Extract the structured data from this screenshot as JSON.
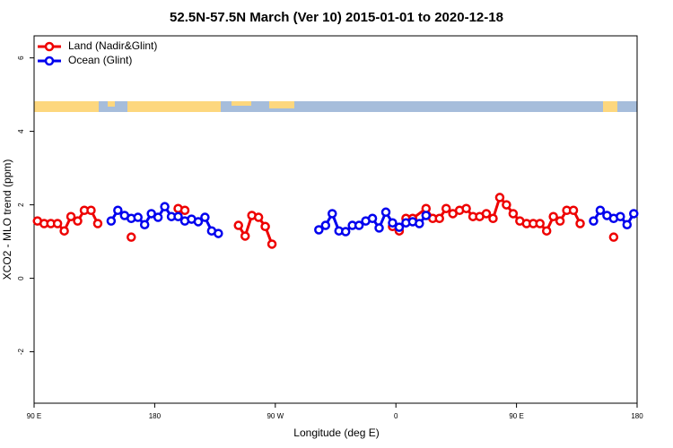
{
  "chart_data": {
    "type": "line",
    "title": "52.5N-57.5N March (Ver 10)   2015-01-01 to 2020-12-18",
    "x_label": "Longitude (deg E)",
    "y_label": "XCO2 - MLO trend (ppm)",
    "xlim": [
      90,
      540
    ],
    "xticks": [
      {
        "value": 90,
        "label": "90 E"
      },
      {
        "value": 180,
        "label": "180"
      },
      {
        "value": 270,
        "label": "90 W"
      },
      {
        "value": 360,
        "label": "0"
      },
      {
        "value": 450,
        "label": "90 E"
      },
      {
        "value": 540,
        "label": "180"
      }
    ],
    "ylim": [
      -3.4,
      6.6
    ],
    "yticks": [
      -2,
      0,
      2,
      4,
      6
    ],
    "legend": "top-left",
    "series": [
      {
        "name": "Land (Nadir&Glint)",
        "color": "#ee0000",
        "x": [
          92.5,
          97.5,
          102.5,
          107.5,
          112.5,
          117.5,
          122.5,
          127.5,
          132.5,
          137.5,
          null,
          162.5,
          null,
          197.5,
          202.5,
          null,
          242.5,
          247.5,
          252.5,
          257.5,
          262.5,
          267.5,
          null,
          357.5,
          362.5,
          367.5,
          372.5,
          382.5,
          387.5,
          392.5,
          397.5,
          402.5,
          407.5,
          412.5,
          417.5,
          422.5,
          427.5,
          432.5,
          437.5,
          442.5,
          447.5,
          452.5,
          457.5,
          462.5,
          467.5,
          472.5,
          477.5,
          482.5,
          487.5,
          492.5,
          497.5,
          null,
          522.5
        ],
        "values": [
          1.56,
          1.49,
          1.49,
          1.49,
          1.29,
          1.68,
          1.56,
          1.85,
          1.85,
          1.49,
          null,
          1.12,
          null,
          1.9,
          1.85,
          null,
          1.44,
          1.15,
          1.71,
          1.66,
          1.41,
          0.93,
          null,
          1.41,
          1.29,
          1.63,
          1.63,
          1.9,
          1.63,
          1.63,
          1.9,
          1.76,
          1.85,
          1.9,
          1.68,
          1.68,
          1.76,
          1.63,
          2.2,
          2.0,
          1.76,
          1.56,
          1.49,
          1.49,
          1.49,
          1.29,
          1.68,
          1.56,
          1.85,
          1.85,
          1.49,
          null,
          1.12
        ]
      },
      {
        "name": "Ocean (Glint)",
        "color": "#0000ee",
        "x": [
          147.5,
          152.5,
          157.5,
          162.5,
          167.5,
          172.5,
          177.5,
          182.5,
          187.5,
          192.5,
          197.5,
          202.5,
          207.5,
          212.5,
          217.5,
          222.5,
          227.5,
          null,
          302.5,
          307.5,
          312.5,
          317.5,
          322.5,
          327.5,
          332.5,
          337.5,
          342.5,
          347.5,
          352.5,
          357.5,
          362.5,
          367.5,
          372.5,
          377.5,
          382.5,
          null,
          507.5,
          512.5,
          517.5,
          522.5,
          527.5,
          532.5,
          537.5
        ],
        "values": [
          1.56,
          1.85,
          1.71,
          1.63,
          1.66,
          1.46,
          1.76,
          1.66,
          1.95,
          1.68,
          1.68,
          1.56,
          1.61,
          1.54,
          1.66,
          1.29,
          1.22,
          null,
          1.32,
          1.44,
          1.76,
          1.29,
          1.27,
          1.44,
          1.44,
          1.56,
          1.63,
          1.37,
          1.8,
          1.51,
          1.39,
          1.51,
          1.54,
          1.49,
          1.71,
          null,
          1.56,
          1.85,
          1.71,
          1.63,
          1.68,
          1.46,
          1.76
        ]
      }
    ]
  }
}
